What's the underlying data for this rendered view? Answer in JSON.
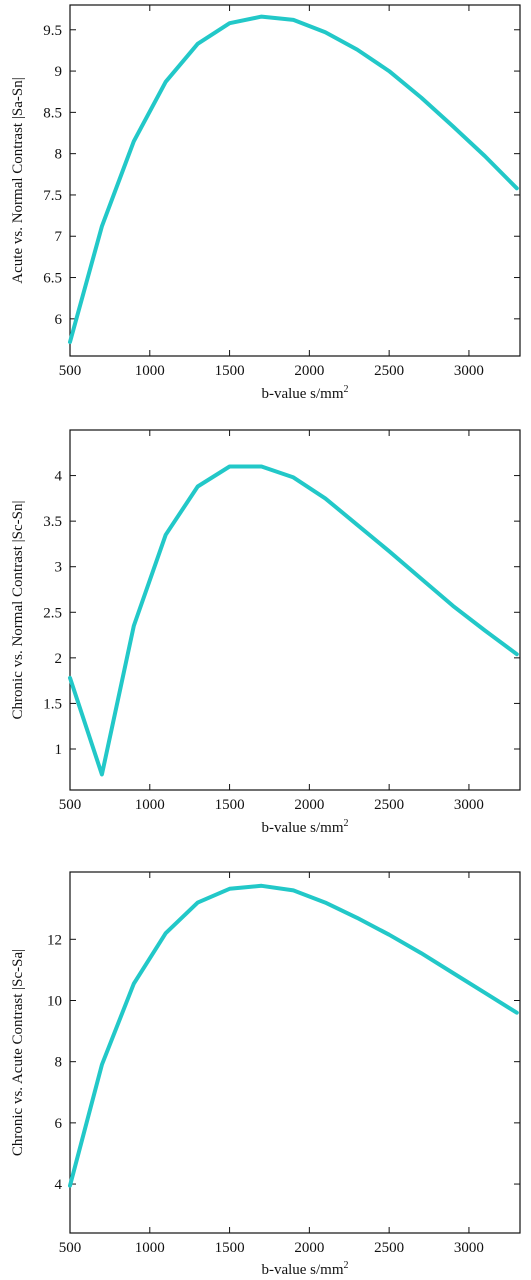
{
  "colors": {
    "line": "#22c8c8",
    "axis": "#111111"
  },
  "chart_data": [
    {
      "type": "line",
      "xlabel": "b-value s/mm",
      "xlabel_sup": "2",
      "ylabel": "Acute vs. Normal Contrast |Sa-Sn|",
      "xlim": [
        500,
        3320
      ],
      "ylim": [
        5.55,
        9.8
      ],
      "xticks": [
        500,
        1000,
        1500,
        2000,
        2500,
        3000
      ],
      "yticks": [
        6,
        6.5,
        7,
        7.5,
        8,
        8.5,
        9,
        9.5
      ],
      "series": [
        {
          "x": [
            500,
            700,
            900,
            1100,
            1300,
            1500,
            1700,
            1900,
            2100,
            2300,
            2500,
            2700,
            2900,
            3100,
            3300
          ],
          "y": [
            5.72,
            7.12,
            8.15,
            8.87,
            9.33,
            9.58,
            9.66,
            9.62,
            9.47,
            9.26,
            9.0,
            8.68,
            8.33,
            7.97,
            7.58
          ]
        }
      ]
    },
    {
      "type": "line",
      "xlabel": "b-value s/mm",
      "xlabel_sup": "2",
      "ylabel": "Chronic vs. Normal Contrast |Sc-Sn|",
      "xlim": [
        500,
        3320
      ],
      "ylim": [
        0.55,
        4.5
      ],
      "xticks": [
        500,
        1000,
        1500,
        2000,
        2500,
        3000
      ],
      "yticks": [
        1,
        1.5,
        2,
        2.5,
        3,
        3.5,
        4
      ],
      "series": [
        {
          "x": [
            500,
            700,
            900,
            1100,
            1300,
            1500,
            1700,
            1900,
            2100,
            2300,
            2500,
            2700,
            2900,
            3100,
            3300
          ],
          "y": [
            1.78,
            0.72,
            2.35,
            3.35,
            3.88,
            4.1,
            4.1,
            3.98,
            3.75,
            3.46,
            3.17,
            2.87,
            2.57,
            2.3,
            2.04
          ]
        }
      ]
    },
    {
      "type": "line",
      "xlabel": "b-value s/mm",
      "xlabel_sup": "2",
      "ylabel": "Chronic vs. Acute Contrast |Sc-Sa|",
      "xlim": [
        500,
        3320
      ],
      "ylim": [
        2.4,
        14.2
      ],
      "xticks": [
        500,
        1000,
        1500,
        2000,
        2500,
        3000
      ],
      "yticks": [
        4,
        6,
        8,
        10,
        12
      ],
      "series": [
        {
          "x": [
            500,
            700,
            900,
            1100,
            1300,
            1500,
            1700,
            1900,
            2100,
            2300,
            2500,
            2700,
            2900,
            3100,
            3300
          ],
          "y": [
            3.95,
            7.9,
            10.55,
            12.2,
            13.2,
            13.65,
            13.75,
            13.6,
            13.2,
            12.7,
            12.15,
            11.55,
            10.9,
            10.25,
            9.6
          ]
        }
      ]
    }
  ]
}
